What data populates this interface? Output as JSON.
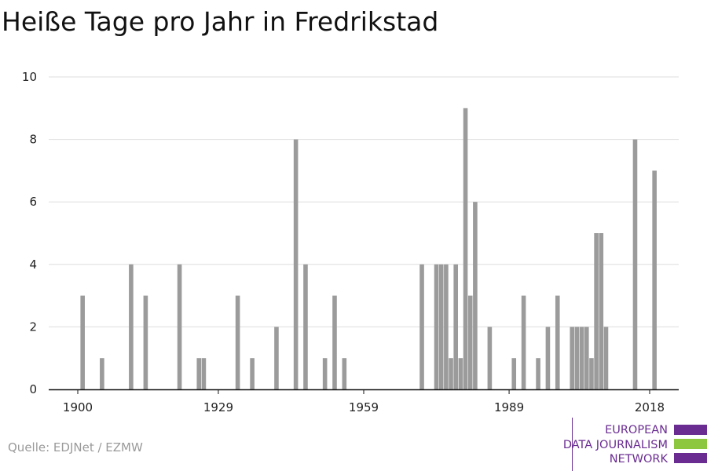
{
  "chart_data": {
    "type": "bar",
    "title": "Heiße Tage pro Jahr in Fredrikstad",
    "xlabel": "",
    "ylabel": "",
    "xlim": [
      1894,
      2024
    ],
    "ylim": [
      0,
      10
    ],
    "x_ticks": [
      1900,
      1929,
      1959,
      1989,
      2018
    ],
    "y_ticks": [
      0,
      2,
      4,
      6,
      8,
      10
    ],
    "grid": "horizontal",
    "bar_color": "#9b9b9b",
    "x": [
      1901,
      1905,
      1911,
      1914,
      1921,
      1925,
      1926,
      1933,
      1936,
      1941,
      1945,
      1947,
      1951,
      1953,
      1955,
      1971,
      1974,
      1975,
      1976,
      1977,
      1978,
      1979,
      1980,
      1981,
      1982,
      1985,
      1990,
      1992,
      1995,
      1997,
      1999,
      2002,
      2003,
      2004,
      2005,
      2006,
      2007,
      2008,
      2009,
      2015,
      2019
    ],
    "values": [
      3,
      1,
      4,
      3,
      4,
      1,
      1,
      3,
      1,
      2,
      8,
      4,
      1,
      3,
      1,
      4,
      4,
      4,
      4,
      1,
      4,
      1,
      9,
      3,
      6,
      2,
      1,
      3,
      1,
      2,
      3,
      2,
      2,
      2,
      2,
      1,
      5,
      5,
      2,
      8,
      7
    ]
  },
  "source": "Quelle: EDJNet / EZMW",
  "logo": {
    "lines": [
      "EUROPEAN",
      "DATA JOURNALISM",
      "NETWORK"
    ],
    "purple": "#6a2c91",
    "green": "#8dc63f"
  }
}
